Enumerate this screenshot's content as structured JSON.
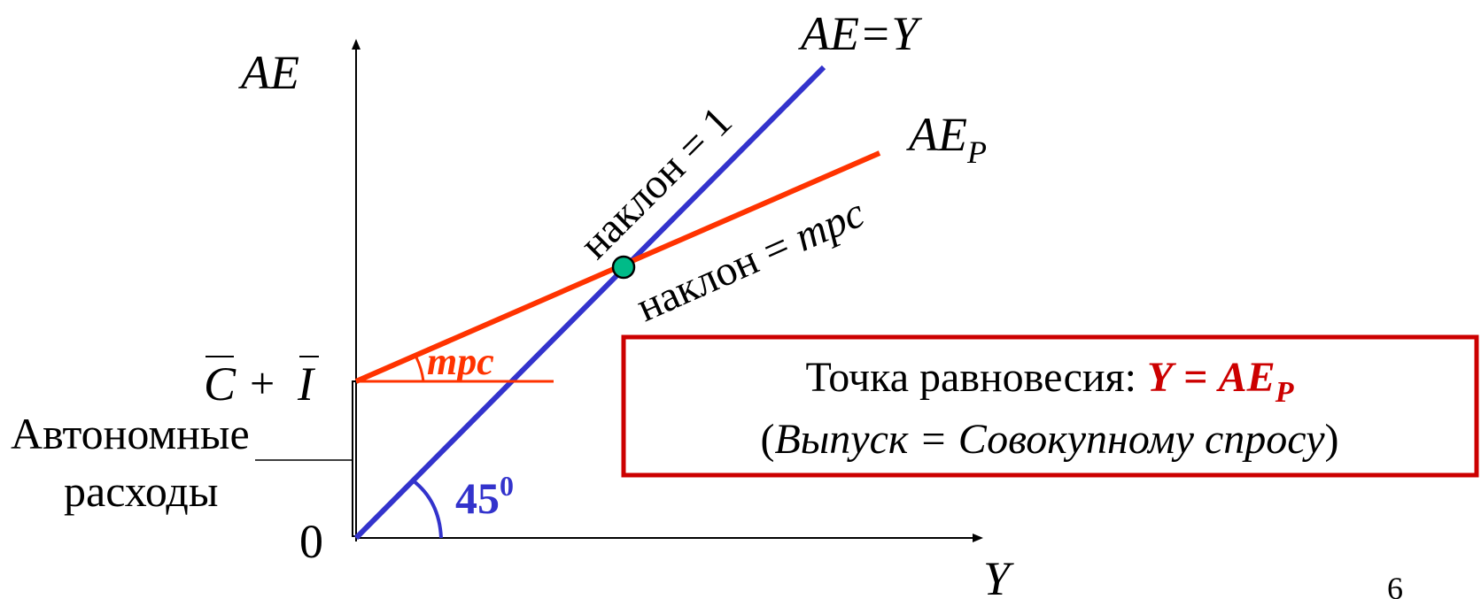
{
  "diagram": {
    "y_axis_label": "AE",
    "x_axis_label": "Y",
    "origin_label": "0",
    "intercept_label": {
      "c": "C",
      "plus": "+",
      "i": "I"
    },
    "autonomous_label_line1": "Автономные",
    "autonomous_label_line2": "расходы",
    "line_45_label": "AE=Y",
    "line_45_slope_label": "наклон = 1",
    "aep_label": {
      "main": "AE",
      "sub": "P"
    },
    "aep_slope_label": {
      "prefix": "наклон = ",
      "mpc": "mpc"
    },
    "mpc_angle_label": "mpc",
    "angle_label": {
      "value": "45",
      "sup": "0"
    },
    "page_number": "6"
  },
  "equilibrium_box": {
    "prefix": "Точка равновесия: ",
    "formula_y": "Y",
    "formula_eq": " = ",
    "formula_ae": "AE",
    "formula_sub": "P",
    "line2_open": "(",
    "line2_text": "Выпуск = Совокупному спросу",
    "line2_close": ")"
  },
  "colors": {
    "line_45": "#3333cc",
    "aep_line": "#ff3300",
    "equilibrium_point": "#00bb88",
    "box_border": "#cc0000",
    "formula": "#cc0000",
    "angle_45": "#3333cc"
  }
}
